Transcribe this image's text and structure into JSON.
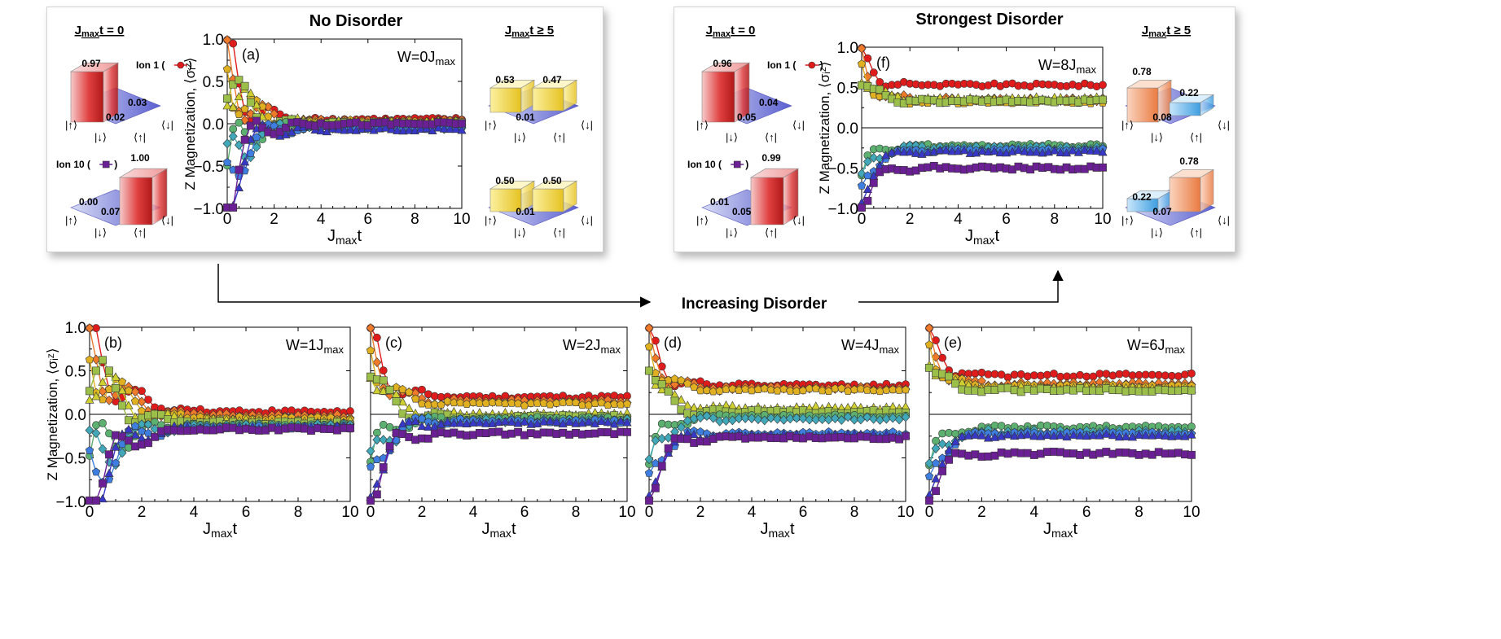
{
  "colors": {
    "ion1": "#e01b1b",
    "ion2": "#ef7a2a",
    "ion3": "#e0b020",
    "ion4": "#cfcf30",
    "ion5": "#9cbf4a",
    "ion6": "#5cb070",
    "ion7": "#40a8b8",
    "ion8": "#3d7ee0",
    "ion9": "#3838c8",
    "ion10": "#6a1f95"
  },
  "arrow_label": "Increasing Disorder",
  "axis_common": {
    "xlabel": "Jₘₐₓt",
    "xlabel_main": "J",
    "xlabel_sub": "max",
    "xlabel_tail": "t",
    "ylabel": "Z Magnetization, ⟨σᵢᶻ⟩",
    "xticks": [
      "0",
      "2",
      "4",
      "6",
      "8",
      "10"
    ],
    "yticks_main": [
      "−1.0",
      "−0.5",
      "0.0",
      "0.5",
      "1.0"
    ]
  },
  "insets": {
    "a": {
      "header_left": "Jₘₐₓt = 0",
      "header_right": "Jₘₐₓt ≥ 5",
      "hdr_l_main": "J",
      "hdr_l_sub": "max",
      "hdr_l_tail": "t = 0",
      "hdr_r_main": "J",
      "hdr_r_sub": "max",
      "hdr_r_tail": "t ≥ 5",
      "ion1_label": "Ion 1 (",
      "ion10_label": "Ion 10 (",
      "left_top": {
        "p_up": "0.97",
        "p_mid": "0.03",
        "p_low": "0.02"
      },
      "left_bot": {
        "p_up": "1.00",
        "p_mid": "0.07",
        "p_low": "0.00"
      },
      "right_top": {
        "a": "0.53",
        "b": "0.47",
        "c": "0.01"
      },
      "right_bot": {
        "a": "0.50",
        "b": "0.50",
        "c": "0.01"
      }
    },
    "f": {
      "hdr_l_main": "J",
      "hdr_l_sub": "max",
      "hdr_l_tail": "t = 0",
      "hdr_r_main": "J",
      "hdr_r_sub": "max",
      "hdr_r_tail": "t ≥ 5",
      "ion1_label": "Ion 1 (",
      "ion10_label": "Ion 10 (",
      "left_top": {
        "p_up": "0.96",
        "p_mid": "0.04",
        "p_low": "0.05"
      },
      "left_bot": {
        "p_up": "0.99",
        "p_mid": "0.05",
        "p_low": "0.01"
      },
      "right_top": {
        "a": "0.78",
        "b": "0.22",
        "c": "0.08"
      },
      "right_bot": {
        "a": "0.78",
        "b": "0.22",
        "c": "0.07"
      }
    },
    "kets": {
      "up": "|↑⟩",
      "down": "|↓⟩",
      "bra_up": "⟨↑|",
      "bra_down": "⟨↓|"
    }
  },
  "chart_data": [
    {
      "id": "a",
      "type": "scatter",
      "panel_label": "(a)",
      "title": "No Disorder",
      "disorder_label": "W=0J",
      "disorder_sub": "max",
      "xlim": [
        0,
        10
      ],
      "ylim": [
        -1,
        1
      ],
      "series_summary": "10 ions relax toward 0.0 (range -0.1 to 0.1 by t=10)",
      "ion_final": [
        0.05,
        0.03,
        0.02,
        0.02,
        0.0,
        -0.03,
        -0.05,
        -0.05,
        -0.07,
        0.0
      ]
    },
    {
      "id": "f",
      "type": "scatter",
      "panel_label": "(f)",
      "title": "Strongest Disorder",
      "disorder_label": "W=8J",
      "disorder_sub": "max",
      "xlim": [
        0,
        10
      ],
      "ylim": [
        -1,
        1
      ],
      "ion_final": [
        0.53,
        0.35,
        0.32,
        0.36,
        0.33,
        -0.22,
        -0.25,
        -0.28,
        -0.3,
        -0.5
      ]
    },
    {
      "id": "b",
      "type": "scatter",
      "panel_label": "(b)",
      "disorder_label": "W=1J",
      "disorder_sub": "max",
      "xlim": [
        0,
        10
      ],
      "ylim": [
        -1,
        1
      ],
      "ion_final": [
        0.03,
        -0.02,
        -0.05,
        -0.08,
        -0.1,
        -0.12,
        -0.13,
        -0.15,
        -0.15,
        -0.17
      ]
    },
    {
      "id": "c",
      "type": "scatter",
      "panel_label": "(c)",
      "disorder_label": "W=2J",
      "disorder_sub": "max",
      "xlim": [
        0,
        10
      ],
      "ylim": [
        -1,
        1
      ],
      "ion_final": [
        0.2,
        0.15,
        0.12,
        0.0,
        -0.03,
        -0.05,
        -0.07,
        -0.08,
        -0.1,
        -0.22
      ]
    },
    {
      "id": "d",
      "type": "scatter",
      "panel_label": "(d)",
      "disorder_label": "W=4J",
      "disorder_sub": "max",
      "xlim": [
        0,
        10
      ],
      "ylim": [
        -1,
        1
      ],
      "ion_final": [
        0.33,
        0.3,
        0.28,
        0.07,
        0.03,
        -0.02,
        -0.05,
        -0.22,
        -0.25,
        -0.27
      ]
    },
    {
      "id": "e",
      "type": "scatter",
      "panel_label": "(e)",
      "disorder_label": "W=6J",
      "disorder_sub": "max",
      "xlim": [
        0,
        10
      ],
      "ylim": [
        -1,
        1
      ],
      "ion_final": [
        0.45,
        0.35,
        0.32,
        0.3,
        0.28,
        -0.15,
        -0.2,
        -0.22,
        -0.25,
        -0.45
      ]
    }
  ]
}
